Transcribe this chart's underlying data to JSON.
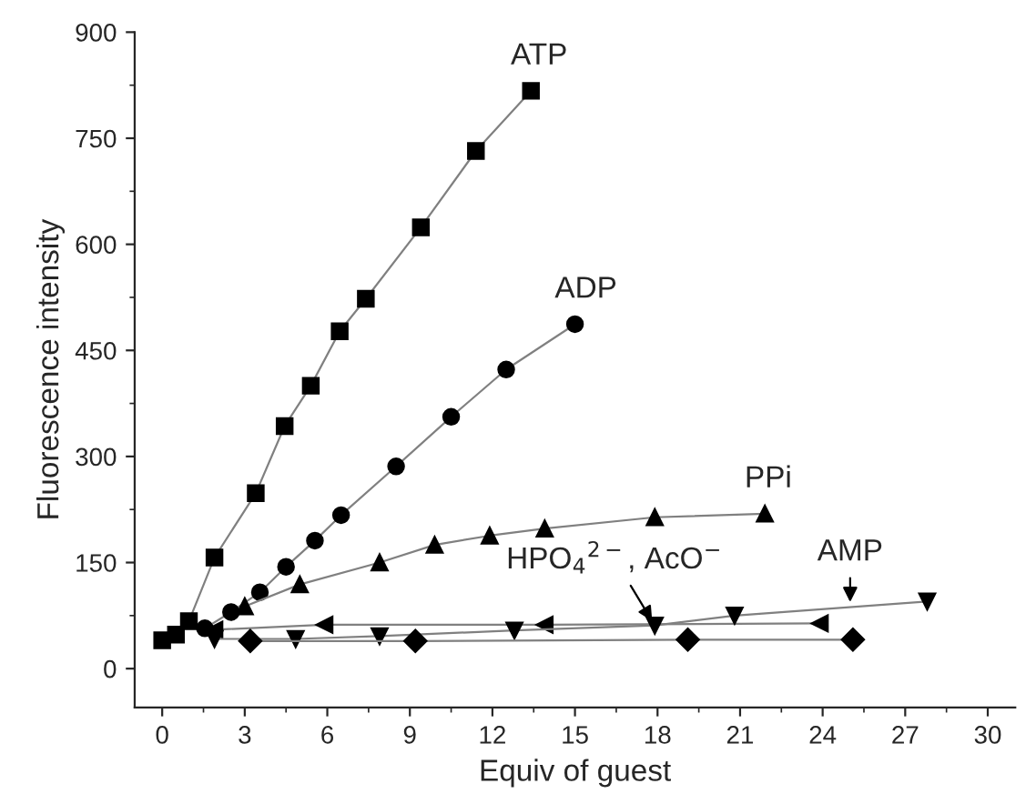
{
  "chart_data": {
    "type": "line",
    "xlabel": "Equiv of guest",
    "ylabel": "Fluorescence intensity",
    "xlim": [
      -1,
      31
    ],
    "ylim": [
      -55,
      900
    ],
    "xticks": [
      0,
      3,
      6,
      9,
      12,
      15,
      18,
      21,
      24,
      27,
      30
    ],
    "yticks": [
      0,
      150,
      300,
      450,
      600,
      750,
      900
    ],
    "grid": false,
    "legend": false,
    "line_style": "solid",
    "series": [
      {
        "name": "ATP",
        "color": "#000000",
        "marker": "square",
        "x": [
          0,
          0.5,
          0.97,
          1.9,
          3.4,
          4.45,
          5.4,
          6.45,
          7.4,
          9.4,
          11.4,
          13.4
        ],
        "values": [
          40,
          48,
          67,
          157,
          248,
          343,
          400,
          477,
          523,
          624,
          732,
          817
        ]
      },
      {
        "name": "ADP",
        "color": "#000000",
        "marker": "circle",
        "x": [
          1.55,
          2.5,
          3.55,
          4.5,
          5.55,
          6.5,
          8.5,
          10.5,
          12.5,
          15
        ],
        "values": [
          57,
          80,
          108,
          144,
          181,
          217,
          286,
          356,
          423,
          487
        ]
      },
      {
        "name": "PPi",
        "color": "#000000",
        "marker": "triangle",
        "x": [
          3,
          5,
          7.9,
          9.9,
          11.9,
          13.9,
          17.9,
          21.9
        ],
        "values": [
          88,
          119,
          150,
          175,
          188,
          198,
          214,
          219
        ]
      },
      {
        "color": "#000000",
        "marker": "triangle_left",
        "x": [
          1.9,
          5.9,
          13.9,
          23.9
        ],
        "values": [
          55,
          62,
          62,
          64
        ]
      },
      {
        "color": "#000000",
        "marker": "triangle_down",
        "x": [
          1.9,
          4.85,
          7.9,
          12.8,
          17.9,
          20.8,
          27.8
        ],
        "values": [
          42,
          42,
          46,
          54,
          61,
          75,
          95
        ]
      },
      {
        "color": "#000000",
        "marker": "diamond",
        "x": [
          3.2,
          9.2,
          19.1,
          25.1
        ],
        "values": [
          39,
          39,
          41,
          41
        ]
      }
    ],
    "annotations": [
      {
        "text": "HPO$_{4}$$^{2−}$, AcO$^{−}$",
        "x": 17.9,
        "y": 61
      },
      {
        "text": "AMP",
        "x": 25,
        "y": 87
      }
    ]
  }
}
